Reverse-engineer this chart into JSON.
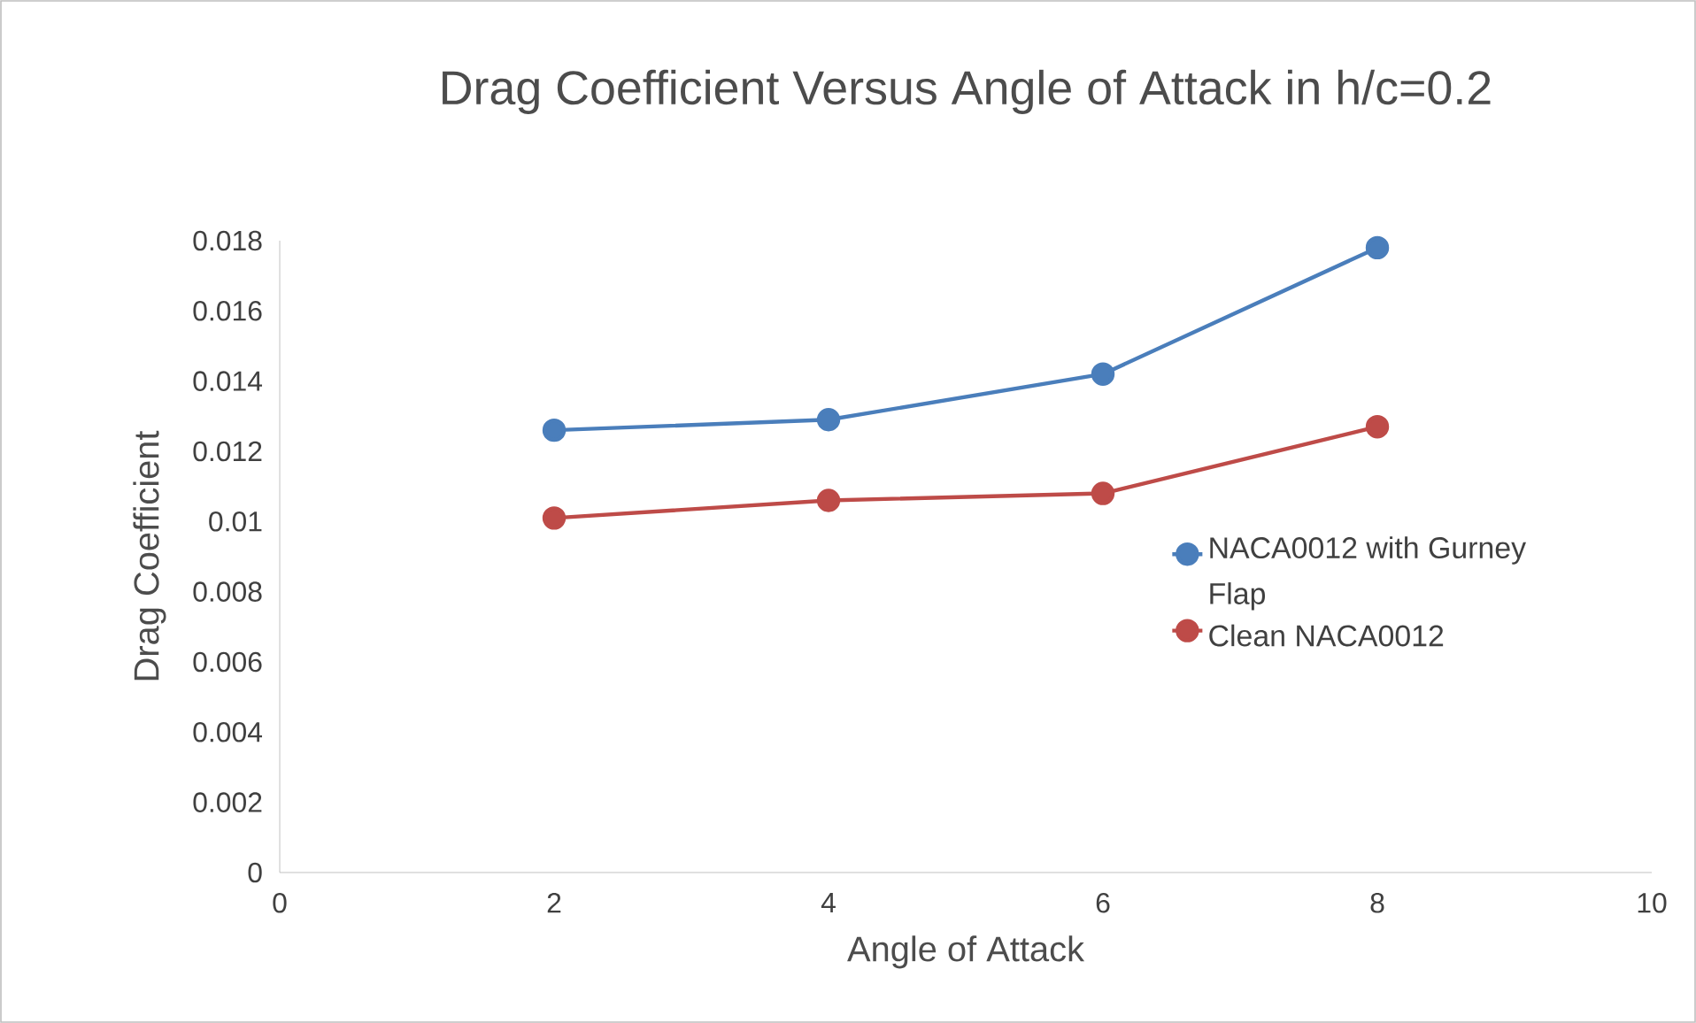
{
  "chart_data": {
    "type": "line",
    "title": "Drag Coefficient Versus Angle of Attack in h/c=0.2",
    "xlabel": "Angle of Attack",
    "ylabel": "Drag Coefficient",
    "x": [
      2,
      4,
      6,
      8
    ],
    "series": [
      {
        "name": "NACA0012 with Gurney Flap",
        "color": "#4a7ebb",
        "values": [
          0.0126,
          0.0129,
          0.0142,
          0.0178
        ]
      },
      {
        "name": "Clean NACA0012",
        "color": "#be4b48",
        "values": [
          0.0101,
          0.0106,
          0.0108,
          0.0127
        ]
      }
    ],
    "xlim": [
      0,
      10
    ],
    "xticks": [
      0,
      2,
      4,
      6,
      8,
      10
    ],
    "ylim": [
      0,
      0.018
    ],
    "yticks": [
      0,
      0.002,
      0.004,
      0.006,
      0.008,
      0.01,
      0.012,
      0.014,
      0.016,
      0.018
    ],
    "grid": false,
    "legend": "right",
    "marker": "circle",
    "line_style": "solid"
  }
}
